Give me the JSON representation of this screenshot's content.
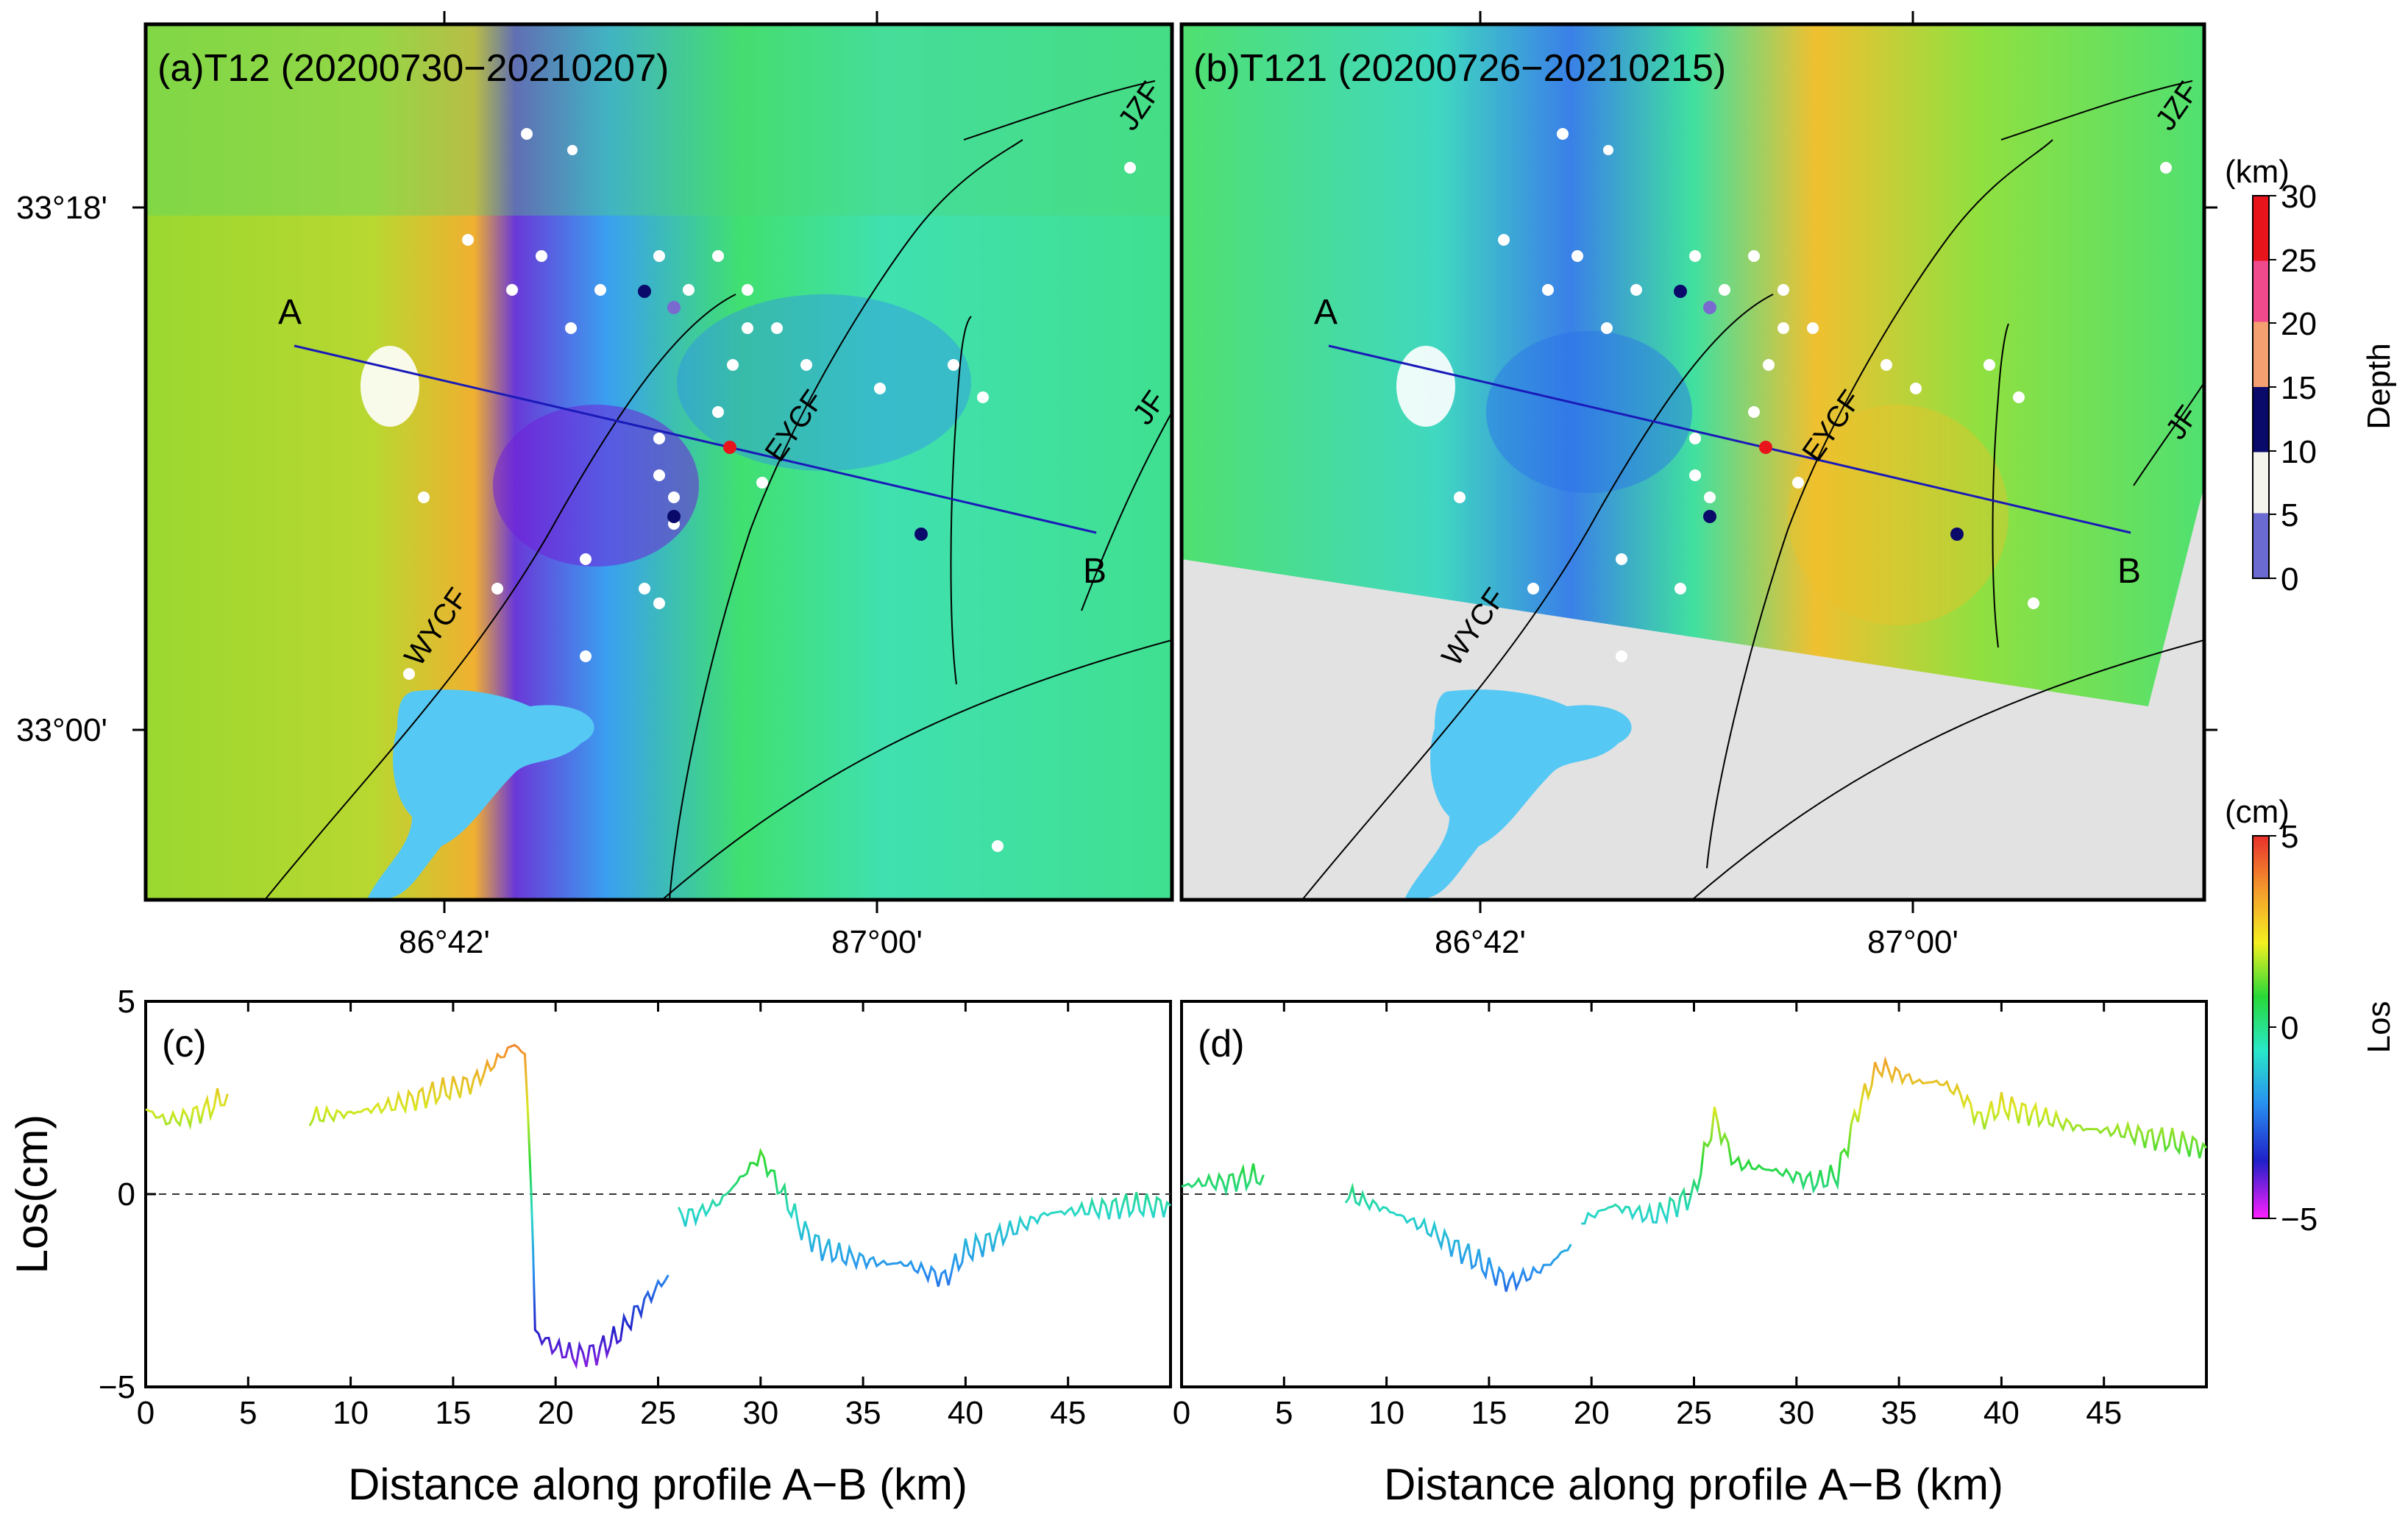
{
  "panels": {
    "a": {
      "label": "(a)T12 (20200730−20210207)"
    },
    "b": {
      "label": "(b)T121 (20200726−20210215)"
    },
    "c": {
      "label": "(c)"
    },
    "d": {
      "label": "(d)"
    }
  },
  "map_axes": {
    "lat_ticks": [
      "33°18'",
      "33°00'"
    ],
    "lon_ticks": [
      "86°42'",
      "87°00'"
    ]
  },
  "faults": [
    "WYCF",
    "EYCF",
    "JZF",
    "JF"
  ],
  "profile": {
    "start": "A",
    "end": "B"
  },
  "depth_colorbar": {
    "unit": "(km)",
    "label": "Depth",
    "ticks": [
      "30",
      "25",
      "20",
      "15",
      "10",
      "5",
      "0"
    ],
    "colors": [
      "#e8141c",
      "#f04a8c",
      "#f4a070",
      "#0a0a6a",
      "#f4f4ec",
      "#6a6ad0"
    ]
  },
  "los_colorbar": {
    "unit": "(cm)",
    "label": "Los",
    "ticks": [
      "5",
      "0",
      "−5"
    ],
    "colors": [
      "#e8302c",
      "#f49a2c",
      "#f4f020",
      "#28d838",
      "#28e8c8",
      "#2890f0",
      "#2020c8",
      "#ff20ff"
    ]
  },
  "colors": {
    "water": "#56c8f4",
    "profile_line": "#1a1ab8",
    "dot_white": "#ffffff",
    "dot_navy": "#0a0a6a",
    "dot_purple": "#7a6ad0",
    "dot_red": "#e8141c"
  },
  "chart_data": [
    {
      "type": "line",
      "panel": "c",
      "title": "",
      "xlabel": "Distance along profile A−B (km)",
      "ylabel": "Los(cm)",
      "xlim": [
        0,
        50
      ],
      "ylim": [
        -5,
        5
      ],
      "xticks": [
        "0",
        "5",
        "10",
        "15",
        "20",
        "25",
        "30",
        "35",
        "40",
        "45"
      ],
      "yticks": [
        "5",
        "0",
        "−5"
      ],
      "reference_line": 0,
      "series": [
        {
          "name": "T12 LOS",
          "segments": [
            {
              "x": [
                0,
                1,
                2,
                3,
                4
              ],
              "values": [
                2.2,
                1.9,
                2.0,
                2.2,
                2.6
              ]
            },
            {
              "x": [
                8,
                10,
                12,
                14,
                16,
                17,
                18,
                18.5,
                18.8,
                19,
                20,
                21,
                22,
                23,
                24,
                25,
                25.5
              ],
              "values": [
                2.0,
                2.1,
                2.3,
                2.6,
                2.9,
                3.4,
                3.9,
                3.6,
                0.5,
                -3.6,
                -4.0,
                -4.2,
                -4.1,
                -3.7,
                -3.0,
                -2.4,
                -2.1
              ]
            },
            {
              "x": [
                26,
                27,
                28,
                29,
                30,
                31,
                32,
                33,
                34,
                35,
                36,
                37,
                38,
                39,
                40,
                42,
                44,
                46,
                48,
                50
              ],
              "values": [
                -0.6,
                -0.5,
                -0.2,
                0.4,
                1.0,
                0.1,
                -0.9,
                -1.4,
                -1.6,
                -1.7,
                -1.8,
                -1.8,
                -2.0,
                -2.2,
                -1.5,
                -1.0,
                -0.5,
                -0.4,
                -0.3,
                -0.3
              ]
            }
          ]
        }
      ]
    },
    {
      "type": "line",
      "panel": "d",
      "title": "",
      "xlabel": "Distance along profile A−B (km)",
      "ylabel": "",
      "xlim": [
        0,
        50
      ],
      "ylim": [
        -5,
        5
      ],
      "xticks": [
        "0",
        "5",
        "10",
        "15",
        "20",
        "25",
        "30",
        "35",
        "40",
        "45"
      ],
      "yticks": [],
      "reference_line": 0,
      "series": [
        {
          "name": "T121 LOS",
          "segments": [
            {
              "x": [
                0,
                1,
                2,
                3,
                4
              ],
              "values": [
                0.2,
                0.3,
                0.3,
                0.4,
                0.5
              ]
            },
            {
              "x": [
                8,
                10,
                12,
                14,
                16,
                17,
                18,
                19
              ],
              "values": [
                0.0,
                -0.4,
                -0.9,
                -1.6,
                -2.3,
                -2.1,
                -1.8,
                -1.3
              ]
            },
            {
              "x": [
                19.5,
                21,
                23,
                25,
                26,
                27,
                29,
                31,
                32,
                33,
                34,
                35,
                36,
                37,
                38,
                39,
                40,
                42,
                44,
                46,
                48,
                50
              ],
              "values": [
                -0.7,
                -0.3,
                -0.6,
                0.0,
                2.0,
                0.8,
                0.6,
                0.3,
                0.5,
                2.2,
                3.3,
                3.1,
                2.9,
                2.9,
                2.6,
                1.9,
                2.3,
                2.0,
                1.7,
                1.6,
                1.4,
                1.2
              ]
            }
          ]
        }
      ]
    }
  ]
}
